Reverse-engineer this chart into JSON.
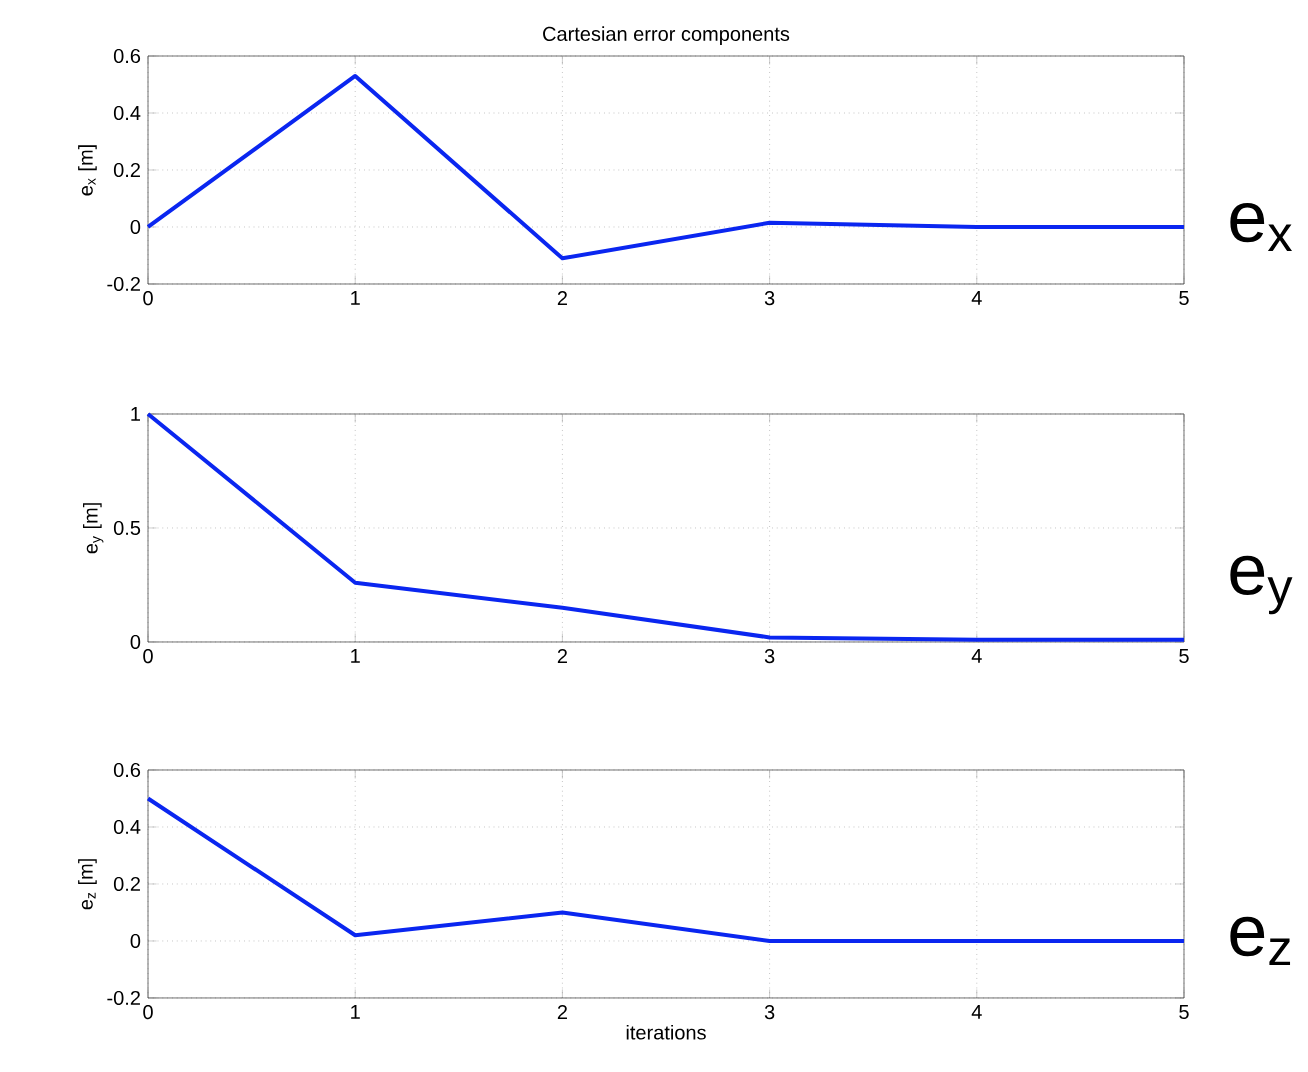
{
  "chart_data": [
    {
      "type": "line",
      "title": "Cartesian error components",
      "ylabel": "e$_{x}$ [m]",
      "x": [
        0,
        1,
        2,
        3,
        4,
        5
      ],
      "series": [
        {
          "color": "#0a26f0",
          "values": [
            0,
            0.53,
            -0.11,
            0.015,
            0,
            0
          ]
        }
      ],
      "xlim": [
        0,
        5
      ],
      "xticks": [
        0,
        1,
        2,
        3,
        4,
        5
      ],
      "ylim": [
        -0.2,
        0.6
      ],
      "yticks": [
        -0.2,
        0,
        0.2,
        0.4,
        0.6
      ],
      "grid": true,
      "annotations": [
        "e$_{x}$"
      ]
    },
    {
      "type": "line",
      "ylabel": "e$_{y}$ [m]",
      "x": [
        0,
        1,
        2,
        3,
        4,
        5
      ],
      "series": [
        {
          "color": "#0a26f0",
          "values": [
            1,
            0.26,
            0.15,
            0.02,
            0.01,
            0.01
          ]
        }
      ],
      "xlim": [
        0,
        5
      ],
      "xticks": [
        0,
        1,
        2,
        3,
        4,
        5
      ],
      "ylim": [
        0,
        1
      ],
      "yticks": [
        0,
        0.5,
        1
      ],
      "grid": true,
      "annotations": [
        "e$_{y}$"
      ]
    },
    {
      "type": "line",
      "ylabel": "e$_{z}$ [m]",
      "xlabel": "iterations",
      "x": [
        0,
        1,
        2,
        3,
        4,
        5
      ],
      "series": [
        {
          "color": "#0a26f0",
          "values": [
            0.5,
            0.02,
            0.1,
            0,
            0,
            0
          ]
        }
      ],
      "xlim": [
        0,
        5
      ],
      "xticks": [
        0,
        1,
        2,
        3,
        4,
        5
      ],
      "ylim": [
        -0.2,
        0.6
      ],
      "yticks": [
        -0.2,
        0,
        0.2,
        0.4,
        0.6
      ],
      "grid": true,
      "annotations": [
        "e$_{z}$"
      ]
    }
  ]
}
